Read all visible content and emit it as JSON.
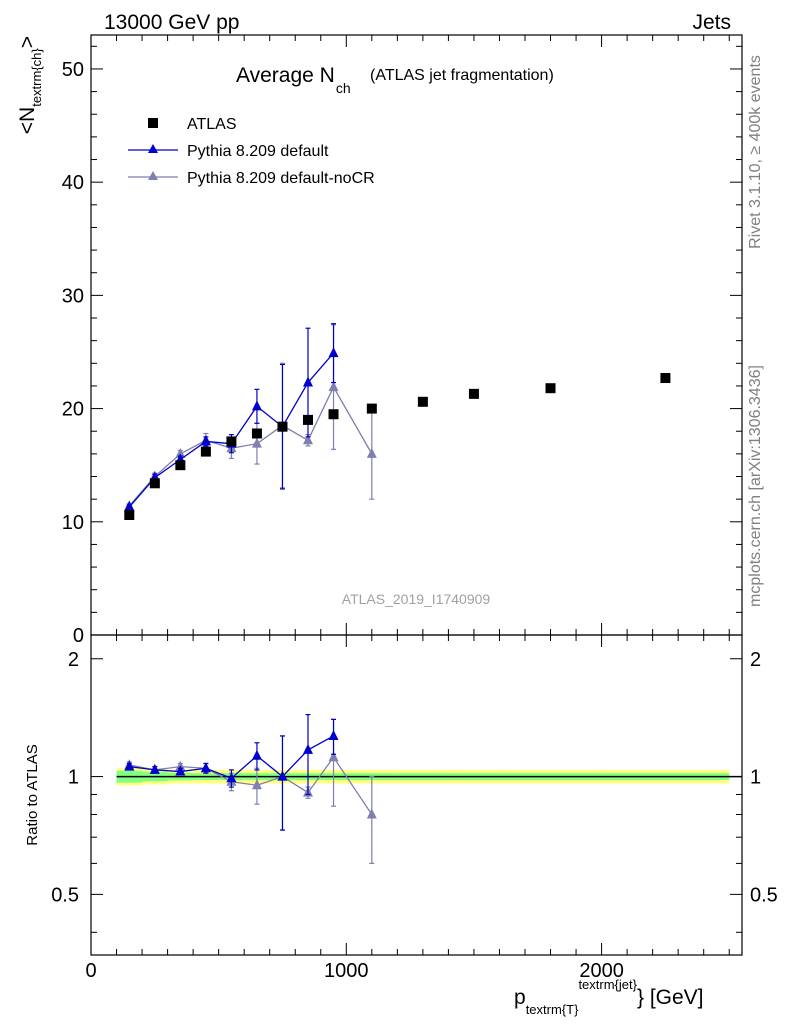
{
  "header": {
    "left": "13000 GeV pp",
    "right": "Jets"
  },
  "side_labels": {
    "rivet": "Rivet 3.1.10, ≥ 400k events",
    "mcplots": "mcplots.cern.ch [arXiv:1306.3436]"
  },
  "colors": {
    "atlas": "#000000",
    "pythia_default": "#0000cc",
    "pythia_nocr": "#7f7fb0",
    "band_yellow": "#ffff80",
    "band_green": "#80ff80"
  },
  "chart_data": [
    {
      "type": "scatter",
      "title": "Average N",
      "title_sub": "ch",
      "title_extra": "(ATLAS jet fragmentation)",
      "ylabel": "<N",
      "ylabel_sub": "textrm{ch}",
      "ylabel_end": ">",
      "analysis_label": "ATLAS_2019_I1740909",
      "xlim": [
        0,
        2550
      ],
      "ylim": [
        0,
        53
      ],
      "yticks": [
        0,
        10,
        20,
        30,
        40,
        50
      ],
      "legend_position": "top-left",
      "series": [
        {
          "name": "ATLAS",
          "marker": "square",
          "x": [
            150,
            250,
            350,
            450,
            550,
            650,
            750,
            850,
            950,
            1100,
            1300,
            1500,
            1800,
            2250
          ],
          "y": [
            10.6,
            13.4,
            15.0,
            16.2,
            17.1,
            17.8,
            18.4,
            19.0,
            19.5,
            20.0,
            20.6,
            21.3,
            21.8,
            22.7
          ],
          "err": [
            0.2,
            0.2,
            0.2,
            0.2,
            0.2,
            0.2,
            0.2,
            0.2,
            0.2,
            0.2,
            0.2,
            0.2,
            0.2,
            0.2
          ]
        },
        {
          "name": "Pythia 8.209 default",
          "marker": "triangle",
          "x": [
            150,
            250,
            350,
            450,
            550,
            650,
            750,
            850,
            950
          ],
          "y": [
            11.3,
            13.9,
            15.5,
            17.1,
            16.9,
            20.2,
            18.4,
            22.3,
            24.9
          ],
          "err": [
            0.2,
            0.3,
            0.3,
            0.4,
            0.8,
            1.5,
            5.5,
            4.8,
            2.6
          ]
        },
        {
          "name": "Pythia 8.209 default-noCR",
          "marker": "triangle",
          "x": [
            150,
            250,
            350,
            450,
            550,
            650,
            750,
            850,
            950,
            1100
          ],
          "y": [
            11.4,
            14.0,
            16.0,
            17.2,
            16.5,
            16.9,
            18.5,
            17.2,
            21.9,
            16.0
          ],
          "err": [
            0.2,
            0.3,
            0.3,
            0.6,
            0.9,
            1.8,
            5.5,
            0.5,
            5.5,
            4.0
          ]
        }
      ]
    },
    {
      "type": "scatter",
      "ylabel": "Ratio to ATLAS",
      "xlabel": "p",
      "xlabel_sub": "textrm{T}",
      "xlabel_sup": "textrm{jet}",
      "xlabel_unit": "} [GeV]",
      "xlim": [
        0,
        2550
      ],
      "ylim": [
        0.35,
        2.3
      ],
      "yticks": [
        0.5,
        1,
        2
      ],
      "xticks": [
        0,
        1000,
        2000
      ],
      "band": {
        "edges": [
          100,
          200,
          300,
          400,
          500,
          600,
          700,
          800,
          900,
          1000,
          1200,
          1400,
          1600,
          2000,
          2500
        ],
        "yellow_half": [
          0.05,
          0.045,
          0.04,
          0.04,
          0.04,
          0.04,
          0.04,
          0.04,
          0.04,
          0.04,
          0.04,
          0.04,
          0.04,
          0.04
        ],
        "green_half": [
          0.035,
          0.028,
          0.022,
          0.02,
          0.02,
          0.02,
          0.02,
          0.02,
          0.02,
          0.02,
          0.02,
          0.02,
          0.02,
          0.02
        ]
      },
      "series": [
        {
          "name": "Pythia 8.209 default",
          "x": [
            150,
            250,
            350,
            450,
            550,
            650,
            750,
            850,
            950
          ],
          "y": [
            1.06,
            1.04,
            1.03,
            1.05,
            0.99,
            1.13,
            1.0,
            1.17,
            1.27
          ],
          "err": [
            0.02,
            0.02,
            0.02,
            0.03,
            0.05,
            0.09,
            0.27,
            0.27,
            0.13
          ]
        },
        {
          "name": "Pythia 8.209 default-noCR",
          "x": [
            150,
            250,
            350,
            450,
            550,
            650,
            750,
            850,
            950,
            1100
          ],
          "y": [
            1.07,
            1.04,
            1.06,
            1.05,
            0.97,
            0.95,
            1.0,
            0.91,
            1.12,
            0.8
          ],
          "err": [
            0.02,
            0.02,
            0.02,
            0.03,
            0.05,
            0.1,
            0.27,
            0.03,
            0.28,
            0.2
          ]
        }
      ]
    }
  ]
}
